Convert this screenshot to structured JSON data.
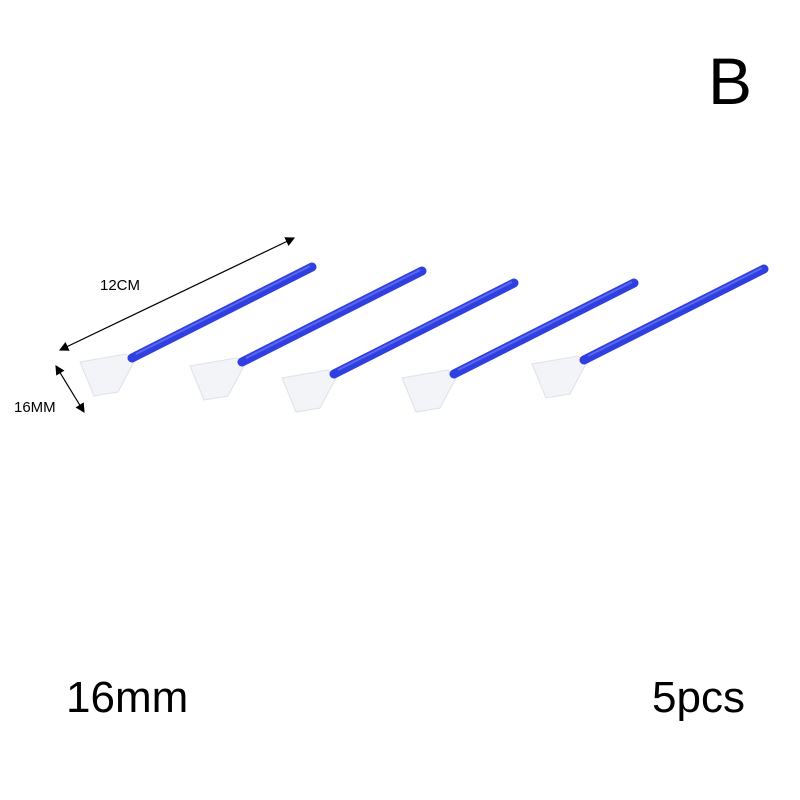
{
  "variant_letter": "B",
  "size_label": "16mm",
  "quantity_label": "5pcs",
  "dimensions": {
    "length": "12CM",
    "width": "16MM"
  },
  "product": {
    "count": 5,
    "stick_color": "#2f3fe0",
    "head_color": "#f2f4f8"
  }
}
